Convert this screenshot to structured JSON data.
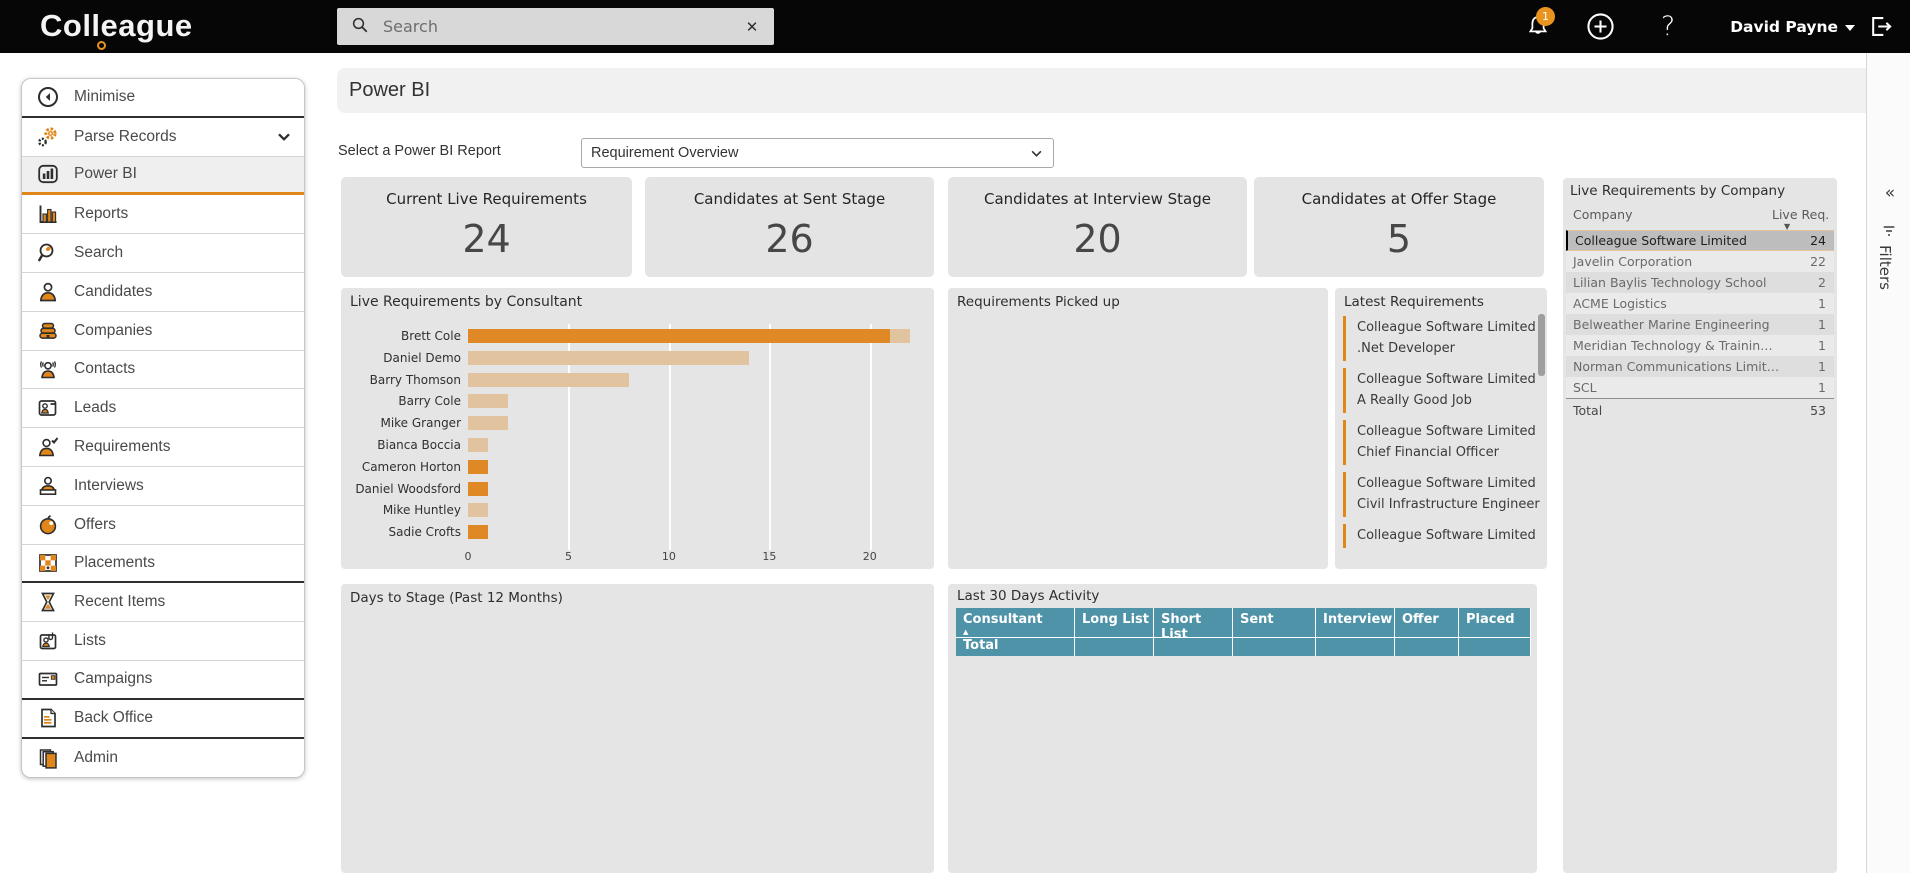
{
  "topbar": {
    "logo_text": "Colleague",
    "search": {
      "placeholder": "Search",
      "clear_label": "✕"
    },
    "notification_badge": "1",
    "user_name": "David Payne"
  },
  "sidebar": {
    "items": [
      {
        "id": "minimise",
        "label": "Minimise",
        "icon": "minimise-icon",
        "divider_after": "dark"
      },
      {
        "id": "parse-records",
        "label": "Parse Records",
        "icon": "parse-records-icon",
        "chevron": true
      },
      {
        "id": "power-bi",
        "label": "Power BI",
        "icon": "power-bi-icon",
        "selected": true
      },
      {
        "id": "reports",
        "label": "Reports",
        "icon": "reports-icon"
      },
      {
        "id": "search",
        "label": "Search",
        "icon": "search-icon"
      },
      {
        "id": "candidates",
        "label": "Candidates",
        "icon": "candidates-icon"
      },
      {
        "id": "companies",
        "label": "Companies",
        "icon": "companies-icon"
      },
      {
        "id": "contacts",
        "label": "Contacts",
        "icon": "contacts-icon"
      },
      {
        "id": "leads",
        "label": "Leads",
        "icon": "leads-icon"
      },
      {
        "id": "requirements",
        "label": "Requirements",
        "icon": "requirements-icon"
      },
      {
        "id": "interviews",
        "label": "Interviews",
        "icon": "interviews-icon"
      },
      {
        "id": "offers",
        "label": "Offers",
        "icon": "offers-icon"
      },
      {
        "id": "placements",
        "label": "Placements",
        "icon": "placements-icon",
        "divider_after": "dark"
      },
      {
        "id": "recent-items",
        "label": "Recent Items",
        "icon": "recent-items-icon"
      },
      {
        "id": "lists",
        "label": "Lists",
        "icon": "lists-icon"
      },
      {
        "id": "campaigns",
        "label": "Campaigns",
        "icon": "campaigns-icon",
        "divider_after": "dark"
      },
      {
        "id": "back-office",
        "label": "Back Office",
        "icon": "back-office-icon",
        "divider_after": "dark"
      },
      {
        "id": "admin",
        "label": "Admin",
        "icon": "admin-icon"
      }
    ]
  },
  "page": {
    "title": "Power BI",
    "report_select_label": "Select a Power BI Report",
    "selected_report": "Requirement Overview"
  },
  "kpis": [
    {
      "label": "Current Live Requirements",
      "value": "24"
    },
    {
      "label": "Candidates at Sent Stage",
      "value": "26"
    },
    {
      "label": "Candidates at Interview Stage",
      "value": "20"
    },
    {
      "label": "Candidates at Offer Stage",
      "value": "5"
    }
  ],
  "panels": {
    "picked_up_title": "Requirements Picked up",
    "days_to_stage_title": "Days to Stage (Past 12 Months)",
    "latest_requirements_title": "Latest Requirements"
  },
  "latest_requirements": [
    {
      "company": "Colleague Software Limited",
      "role": ".Net Developer"
    },
    {
      "company": "Colleague Software Limited",
      "role": "A Really Good Job"
    },
    {
      "company": "Colleague Software Limited",
      "role": "Chief Financial Officer"
    },
    {
      "company": "Colleague Software Limited",
      "role": "Civil Infrastructure Engineer"
    },
    {
      "company": "Colleague Software Limited",
      "role": ""
    }
  ],
  "colors": {
    "accent_orange": "#E0861B",
    "bar_dark": "#DE8926",
    "bar_light": "#E2C3A0",
    "table_header_teal": "#4E93A8",
    "panel_gray": "#E5E5E5"
  },
  "chart_data": [
    {
      "type": "bar",
      "title": "Live Requirements by Consultant",
      "orientation": "horizontal",
      "categories": [
        "Brett Cole",
        "Daniel Demo",
        "Barry Thomson",
        "Barry Cole",
        "Mike Granger",
        "Bianca Boccia",
        "Cameron Horton",
        "Daniel Woodsford",
        "Mike Huntley",
        "Sadie Crofts"
      ],
      "values": [
        22,
        14,
        8,
        2,
        2,
        1,
        1,
        1,
        1,
        1
      ],
      "segments": [
        [
          {
            "value": 21,
            "color": "#DE8926"
          },
          {
            "value": 1,
            "color": "#E2C3A0"
          }
        ],
        [
          {
            "value": 14,
            "color": "#E2C3A0"
          }
        ],
        [
          {
            "value": 8,
            "color": "#E2C3A0"
          }
        ],
        [
          {
            "value": 2,
            "color": "#E2C3A0"
          }
        ],
        [
          {
            "value": 2,
            "color": "#E2C3A0"
          }
        ],
        [
          {
            "value": 1,
            "color": "#E2C3A0"
          }
        ],
        [
          {
            "value": 1,
            "color": "#DE8926"
          }
        ],
        [
          {
            "value": 1,
            "color": "#DE8926"
          }
        ],
        [
          {
            "value": 1,
            "color": "#E2C3A0"
          }
        ],
        [
          {
            "value": 1,
            "color": "#DE8926"
          }
        ]
      ],
      "x_ticks": [
        0,
        5,
        10,
        15,
        20
      ],
      "xlim": [
        0,
        22.5
      ],
      "grid": true,
      "xlabel": "",
      "ylabel": ""
    },
    {
      "type": "table",
      "title": "Live Requirements by Company",
      "columns": [
        "Company",
        "Live Req."
      ],
      "sort": {
        "column": "Live Req.",
        "direction": "desc"
      },
      "rows": [
        {
          "company": "Colleague Software Limited",
          "value": 24,
          "selected": true
        },
        {
          "company": "Javelin Corporation",
          "value": 22
        },
        {
          "company": "Lilian Baylis Technology School",
          "value": 2
        },
        {
          "company": "ACME Logistics",
          "value": 1
        },
        {
          "company": "Belweather Marine Engineering",
          "value": 1
        },
        {
          "company": "Meridian Technology & Trainin…",
          "value": 1
        },
        {
          "company": "Norman Communications Limit…",
          "value": 1
        },
        {
          "company": "SCL",
          "value": 1
        }
      ],
      "total_label": "Total",
      "total_value": 53
    },
    {
      "type": "table",
      "title": "Last 30 Days Activity",
      "columns": [
        "Consultant",
        "Long List",
        "Short List",
        "Sent",
        "Interview",
        "Offer",
        "Placed"
      ],
      "sort": {
        "column": "Consultant",
        "direction": "asc"
      },
      "rows": [],
      "total_label": "Total"
    }
  ],
  "filters_pane": {
    "label": "Filters",
    "collapse_glyph": "«"
  }
}
